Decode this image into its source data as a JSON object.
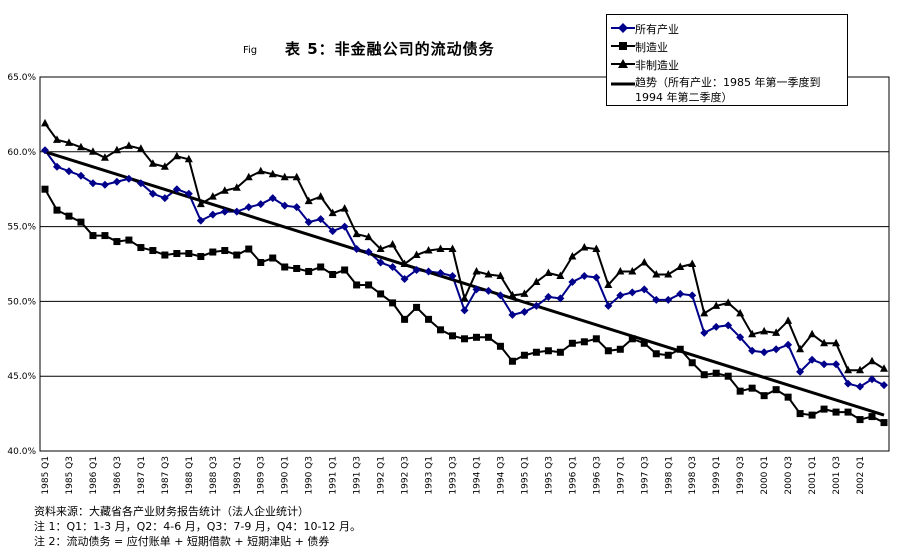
{
  "title": "表 5：非金融公司的流动债务",
  "fig_label": "Fig",
  "colors": {
    "all": "#00008B",
    "mfg": "#000000",
    "nonmfg": "#000000",
    "trend": "#000000",
    "grid": "#000000"
  },
  "chart_data": {
    "type": "line",
    "title": "表 5：非金融公司的流动债务",
    "ylim": [
      40.0,
      65.0
    ],
    "yticks": [
      "40.0%",
      "45.0%",
      "50.0%",
      "55.0%",
      "60.0%",
      "65.0%"
    ],
    "ytick_values": [
      40,
      45,
      50,
      55,
      60,
      65
    ],
    "grid": true,
    "legend_position": "top-right",
    "xtick_labels": [
      "1985 Q1",
      "1985 Q3",
      "1986 Q1",
      "1986 Q3",
      "1987 Q1",
      "1987 Q3",
      "1988 Q1",
      "1988 Q3",
      "1989 Q1",
      "1989 Q3",
      "1990 Q1",
      "1990 Q3",
      "1991 Q1",
      "1991 Q3",
      "1992 Q1",
      "1992 Q3",
      "1993 Q1",
      "1993 Q3",
      "1994 Q1",
      "1994 Q3",
      "1995 Q1",
      "1995 Q3",
      "1996 Q1",
      "1996 Q3",
      "1997 Q1",
      "1997 Q3",
      "1998 Q1",
      "1998 Q3",
      "1999 Q1",
      "1999 Q3",
      "2000 Q1",
      "2000 Q3",
      "2001 Q1",
      "2001 Q3",
      "2002 Q1"
    ],
    "series": [
      {
        "name": "所有产业",
        "marker": "diamond",
        "values": [
          60.1,
          59.0,
          58.7,
          58.4,
          57.9,
          57.8,
          58.0,
          58.2,
          57.9,
          57.2,
          56.9,
          57.5,
          57.2,
          55.4,
          55.8,
          56.0,
          56.0,
          56.3,
          56.5,
          56.9,
          56.4,
          56.3,
          55.3,
          55.5,
          54.7,
          55.0,
          53.5,
          53.3,
          52.6,
          52.3,
          51.5,
          52.1,
          52.0,
          51.9,
          51.7,
          49.4,
          50.8,
          50.7,
          50.4,
          49.1,
          49.3,
          49.7,
          50.3,
          50.2,
          51.3,
          51.7,
          51.6,
          49.7,
          50.4,
          50.6,
          50.8,
          50.1,
          50.1,
          50.5,
          50.4,
          47.9,
          48.3,
          48.4,
          47.6,
          46.7,
          46.6,
          46.8,
          47.1,
          45.3,
          46.1,
          45.8,
          45.8,
          44.5,
          44.3,
          44.8,
          44.4
        ]
      },
      {
        "name": "制造业",
        "marker": "square",
        "values": [
          57.5,
          56.1,
          55.7,
          55.3,
          54.4,
          54.4,
          54.0,
          54.1,
          53.6,
          53.4,
          53.1,
          53.2,
          53.2,
          53.0,
          53.3,
          53.4,
          53.1,
          53.5,
          52.6,
          52.9,
          52.3,
          52.2,
          52.0,
          52.3,
          51.8,
          52.1,
          51.1,
          51.1,
          50.5,
          49.9,
          48.8,
          49.6,
          48.8,
          48.1,
          47.7,
          47.5,
          47.6,
          47.6,
          47.0,
          46.0,
          46.4,
          46.6,
          46.7,
          46.6,
          47.2,
          47.3,
          47.5,
          46.7,
          46.8,
          47.5,
          47.2,
          46.5,
          46.4,
          46.8,
          45.9,
          45.1,
          45.2,
          45.0,
          44.0,
          44.2,
          43.7,
          44.1,
          43.6,
          42.5,
          42.4,
          42.8,
          42.6,
          42.6,
          42.1,
          42.3,
          41.9
        ]
      },
      {
        "name": "非制造业",
        "marker": "triangle",
        "values": [
          61.9,
          60.8,
          60.6,
          60.3,
          60.0,
          59.6,
          60.1,
          60.4,
          60.2,
          59.2,
          59.0,
          59.7,
          59.5,
          56.5,
          57.0,
          57.4,
          57.6,
          58.3,
          58.7,
          58.5,
          58.3,
          58.3,
          56.7,
          57.0,
          55.9,
          56.2,
          54.5,
          54.3,
          53.5,
          53.8,
          52.5,
          53.1,
          53.4,
          53.5,
          53.5,
          50.2,
          52.0,
          51.8,
          51.7,
          50.4,
          50.5,
          51.3,
          51.9,
          51.7,
          53.0,
          53.6,
          53.5,
          51.1,
          52.0,
          52.0,
          52.6,
          51.8,
          51.8,
          52.3,
          52.5,
          49.2,
          49.7,
          49.9,
          49.2,
          47.8,
          48.0,
          47.9,
          48.7,
          46.8,
          47.8,
          47.2,
          47.2,
          45.4,
          45.4,
          46.0,
          45.5
        ]
      },
      {
        "name": "趋势（所有产业：1985 年第一季度到 1994 年第二季度）",
        "marker": "none",
        "trend": true,
        "values": [
          60.0,
          42.4
        ]
      }
    ]
  },
  "notes": [
    "资料来源：大藏省各产业财务报告统计（法人企业统计）",
    "注 1：Q1：1-3 月，Q2：4-6 月，Q3：7-9 月，Q4：10-12 月。",
    "注 2：流动债务 = 应付账单 + 短期借款 + 短期津贴 + 债券"
  ]
}
